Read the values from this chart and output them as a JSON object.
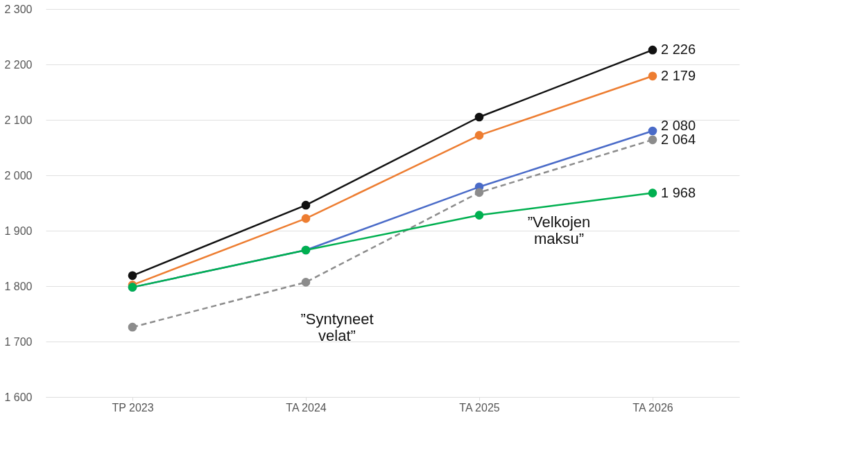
{
  "chart_data": {
    "type": "line",
    "categories": [
      "TP 2023",
      "TA 2024",
      "TA 2025",
      "TA 2026"
    ],
    "series": [
      {
        "color": "#111111",
        "values": [
          1819,
          1946,
          2105,
          2226
        ],
        "value_labels": [
          null,
          null,
          null,
          "2 226"
        ]
      },
      {
        "color": "#ed7d31",
        "values": [
          1802,
          1922,
          2072,
          2179
        ],
        "value_labels": [
          null,
          null,
          null,
          "2 179"
        ]
      },
      {
        "color": "#4a6bc8",
        "values": [
          1798,
          1865,
          1979,
          2080
        ],
        "value_labels": [
          null,
          null,
          null,
          "2 080"
        ]
      },
      {
        "color": "#8c8c8c",
        "values": [
          1726,
          1807,
          1969,
          2064
        ],
        "value_labels": [
          null,
          null,
          null,
          "2 064"
        ],
        "line_style": "dashed"
      },
      {
        "color": "#00b050",
        "values": [
          1798,
          1865,
          1928,
          1968
        ],
        "value_labels": [
          null,
          null,
          null,
          "1 968"
        ]
      }
    ],
    "ylim": [
      1600,
      2300
    ],
    "yticks": [
      1600,
      1700,
      1800,
      1900,
      2000,
      2100,
      2200,
      2300
    ],
    "grid": "y",
    "marker": "circle",
    "annotations": [
      "”Syntyneet\nvelat”",
      "”Velkojen\nmaksu”"
    ]
  }
}
